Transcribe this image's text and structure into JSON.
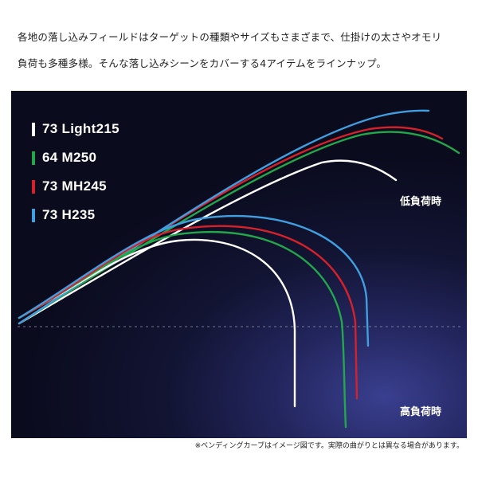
{
  "intro": {
    "line1": "各地の落し込みフィールドはターゲットの種類やサイズもさまざまで、仕掛けの太さやオモリ",
    "line2": "負荷も多種多様。そんな落し込みシーンをカバーする4アイテムをラインナップ。"
  },
  "diagram": {
    "background_colors": [
      "#0a0b1d",
      "#23265e",
      "#3a3f8f"
    ],
    "items": [
      {
        "label": "73 Light215",
        "color": "#ffffff"
      },
      {
        "label": "64 M250",
        "color": "#22a84a"
      },
      {
        "label": "73 MH245",
        "color": "#d6212b"
      },
      {
        "label": "73 H235",
        "color": "#3f9fe0"
      }
    ],
    "low_load_label": "低負荷時",
    "high_load_label": "高負荷時",
    "baseline_style": "dashed"
  },
  "note": "※ベンディングカーブはイメージ図です。実際の曲がりとは異なる場合があります。"
}
